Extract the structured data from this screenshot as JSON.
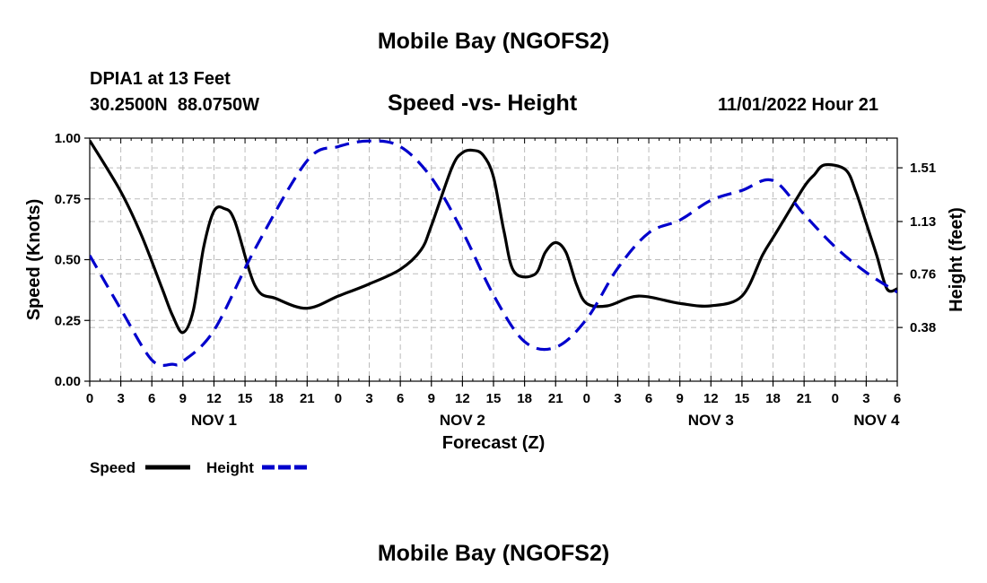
{
  "page": {
    "title": "Mobile Bay (NGOFS2)",
    "footer_title": "Mobile Bay (NGOFS2)",
    "station": "DPIA1 at 13 Feet",
    "coords": "30.2500N  88.0750W",
    "subtitle": "Speed -vs- Height",
    "timestamp": "11/01/2022 Hour 21"
  },
  "chart_data": {
    "type": "line",
    "title": "Speed -vs- Height",
    "xlabel": "Forecast (Z)",
    "ylabel": "Speed (Knots)",
    "y2label": "Height (feet)",
    "xlim": [
      0,
      78
    ],
    "ylim": [
      0,
      1.0
    ],
    "y2lim": [
      0.0,
      1.72
    ],
    "grid": true,
    "legend_position": "bottom-left",
    "x_ticks": [
      0,
      3,
      6,
      9,
      12,
      15,
      18,
      21,
      24,
      27,
      30,
      33,
      36,
      39,
      42,
      45,
      48,
      51,
      54,
      57,
      60,
      63,
      66,
      69,
      72,
      75,
      78
    ],
    "x_tick_labels": [
      "0",
      "3",
      "6",
      "9",
      "12",
      "15",
      "18",
      "21",
      "0",
      "3",
      "6",
      "9",
      "12",
      "15",
      "18",
      "21",
      "0",
      "3",
      "6",
      "9",
      "12",
      "15",
      "18",
      "21",
      "0",
      "3",
      "6"
    ],
    "day_labels": [
      {
        "x": 12,
        "label": "NOV 1"
      },
      {
        "x": 36,
        "label": "NOV 2"
      },
      {
        "x": 60,
        "label": "NOV 3"
      },
      {
        "x": 76,
        "label": "NOV 4"
      }
    ],
    "y_ticks": [
      0,
      0.25,
      0.5,
      0.75,
      1.0
    ],
    "y_tick_labels": [
      "0.00",
      "0.25",
      "0.50",
      "0.75",
      "1.00"
    ],
    "y2_ticks": [
      0.38,
      0.76,
      1.13,
      1.51
    ],
    "y2_tick_labels": [
      "0.38",
      "0.76",
      "1.13",
      "1.51"
    ],
    "series": [
      {
        "name": "Speed",
        "axis": "left",
        "color": "#000000",
        "style": "solid",
        "x": [
          0,
          3,
          5,
          7,
          8,
          9,
          10,
          11,
          12,
          13,
          14,
          16,
          18,
          21,
          24,
          27,
          30,
          32,
          33,
          35,
          36,
          37,
          38,
          39,
          40,
          41,
          43,
          44,
          45,
          46,
          47,
          48,
          50,
          53,
          57,
          60,
          63,
          65,
          66,
          67,
          69,
          70,
          71,
          73,
          74,
          75,
          76,
          77,
          78
        ],
        "y": [
          0.99,
          0.78,
          0.6,
          0.38,
          0.27,
          0.2,
          0.29,
          0.55,
          0.7,
          0.71,
          0.66,
          0.39,
          0.34,
          0.3,
          0.35,
          0.4,
          0.46,
          0.54,
          0.64,
          0.88,
          0.94,
          0.95,
          0.93,
          0.84,
          0.62,
          0.45,
          0.44,
          0.53,
          0.57,
          0.53,
          0.4,
          0.32,
          0.31,
          0.35,
          0.32,
          0.31,
          0.35,
          0.52,
          0.59,
          0.66,
          0.8,
          0.85,
          0.89,
          0.87,
          0.78,
          0.65,
          0.52,
          0.38,
          0.38
        ]
      },
      {
        "name": "Height",
        "axis": "right",
        "color": "#0000cc",
        "style": "dashed",
        "x": [
          0,
          3,
          6,
          8,
          9,
          12,
          16,
          21,
          24,
          27,
          30,
          33,
          36,
          39,
          42,
          45,
          48,
          51,
          54,
          57,
          60,
          63,
          66,
          69,
          72,
          75,
          78
        ],
        "y": [
          0.89,
          0.51,
          0.15,
          0.12,
          0.14,
          0.36,
          0.94,
          1.56,
          1.66,
          1.7,
          1.66,
          1.44,
          1.06,
          0.61,
          0.28,
          0.24,
          0.44,
          0.8,
          1.05,
          1.14,
          1.28,
          1.35,
          1.42,
          1.18,
          0.95,
          0.77,
          0.63
        ]
      }
    ]
  }
}
